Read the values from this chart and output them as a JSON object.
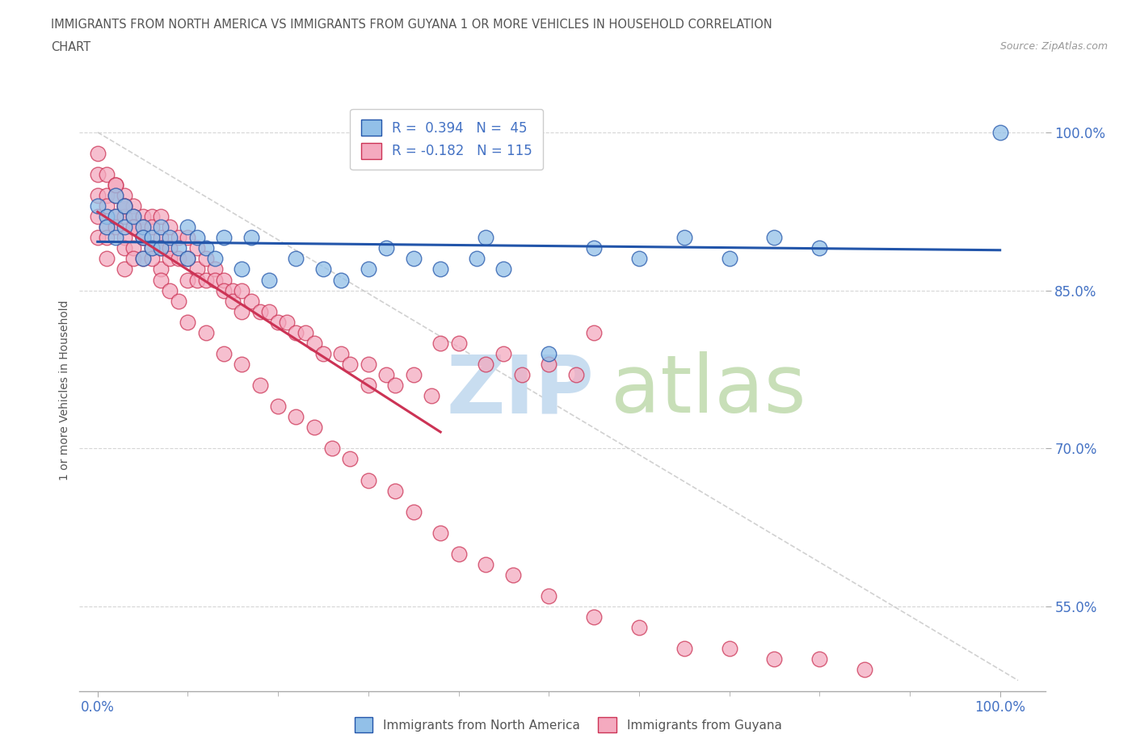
{
  "title_line1": "IMMIGRANTS FROM NORTH AMERICA VS IMMIGRANTS FROM GUYANA 1 OR MORE VEHICLES IN HOUSEHOLD CORRELATION",
  "title_line2": "CHART",
  "source_text": "Source: ZipAtlas.com",
  "ylabel": "1 or more Vehicles in Household",
  "ytick_labels": [
    "55.0%",
    "70.0%",
    "85.0%",
    "100.0%"
  ],
  "ytick_values": [
    0.55,
    0.7,
    0.85,
    1.0
  ],
  "xtick_labels": [
    "0.0%",
    "100.0%"
  ],
  "xtick_values": [
    0.0,
    1.0
  ],
  "xlim": [
    -0.02,
    1.05
  ],
  "ylim": [
    0.47,
    1.04
  ],
  "color_blue": "#92C0E8",
  "color_pink": "#F4AABF",
  "line_color_blue": "#2255AA",
  "line_color_pink": "#CC3355",
  "dash_line_color": "#CCCCCC",
  "background_color": "#ffffff",
  "grid_color": "#CCCCCC",
  "title_color": "#555555",
  "axis_label_color": "#4472c4",
  "watermark_zip_color": "#C8DDF0",
  "watermark_atlas_color": "#C8DFB8",
  "blue_points_x": [
    0.0,
    0.01,
    0.01,
    0.02,
    0.02,
    0.02,
    0.03,
    0.03,
    0.04,
    0.05,
    0.05,
    0.05,
    0.06,
    0.06,
    0.07,
    0.07,
    0.08,
    0.09,
    0.1,
    0.1,
    0.11,
    0.12,
    0.13,
    0.14,
    0.16,
    0.17,
    0.19,
    0.22,
    0.25,
    0.27,
    0.3,
    0.32,
    0.35,
    0.38,
    0.42,
    0.43,
    0.45,
    0.5,
    0.55,
    0.6,
    0.65,
    0.7,
    0.75,
    0.8,
    1.0
  ],
  "blue_points_y": [
    0.93,
    0.92,
    0.91,
    0.94,
    0.92,
    0.9,
    0.93,
    0.91,
    0.92,
    0.91,
    0.9,
    0.88,
    0.9,
    0.89,
    0.91,
    0.89,
    0.9,
    0.89,
    0.91,
    0.88,
    0.9,
    0.89,
    0.88,
    0.9,
    0.87,
    0.9,
    0.86,
    0.88,
    0.87,
    0.86,
    0.87,
    0.89,
    0.88,
    0.87,
    0.88,
    0.9,
    0.87,
    0.79,
    0.89,
    0.88,
    0.9,
    0.88,
    0.9,
    0.89,
    1.0
  ],
  "pink_points_x": [
    0.0,
    0.0,
    0.0,
    0.0,
    0.0,
    0.01,
    0.01,
    0.01,
    0.01,
    0.01,
    0.01,
    0.02,
    0.02,
    0.02,
    0.02,
    0.03,
    0.03,
    0.03,
    0.03,
    0.03,
    0.03,
    0.04,
    0.04,
    0.04,
    0.04,
    0.04,
    0.05,
    0.05,
    0.05,
    0.05,
    0.06,
    0.06,
    0.06,
    0.07,
    0.07,
    0.07,
    0.07,
    0.08,
    0.08,
    0.08,
    0.09,
    0.09,
    0.1,
    0.1,
    0.1,
    0.11,
    0.11,
    0.11,
    0.12,
    0.12,
    0.13,
    0.13,
    0.14,
    0.14,
    0.15,
    0.15,
    0.16,
    0.16,
    0.17,
    0.18,
    0.19,
    0.2,
    0.21,
    0.22,
    0.23,
    0.24,
    0.25,
    0.27,
    0.28,
    0.3,
    0.3,
    0.32,
    0.33,
    0.35,
    0.37,
    0.38,
    0.4,
    0.43,
    0.45,
    0.47,
    0.5,
    0.53,
    0.55,
    0.02,
    0.03,
    0.04,
    0.05,
    0.06,
    0.07,
    0.08,
    0.09,
    0.1,
    0.12,
    0.14,
    0.16,
    0.18,
    0.2,
    0.22,
    0.24,
    0.26,
    0.28,
    0.3,
    0.33,
    0.35,
    0.38,
    0.4,
    0.43,
    0.46,
    0.5,
    0.55,
    0.6,
    0.65,
    0.7,
    0.75,
    0.8,
    0.85
  ],
  "pink_points_y": [
    0.98,
    0.96,
    0.94,
    0.92,
    0.9,
    0.96,
    0.94,
    0.93,
    0.91,
    0.9,
    0.88,
    0.95,
    0.94,
    0.92,
    0.91,
    0.94,
    0.93,
    0.92,
    0.9,
    0.89,
    0.87,
    0.93,
    0.92,
    0.91,
    0.89,
    0.88,
    0.92,
    0.91,
    0.9,
    0.88,
    0.92,
    0.91,
    0.89,
    0.92,
    0.9,
    0.89,
    0.87,
    0.91,
    0.89,
    0.88,
    0.9,
    0.88,
    0.9,
    0.88,
    0.86,
    0.89,
    0.87,
    0.86,
    0.88,
    0.86,
    0.87,
    0.86,
    0.86,
    0.85,
    0.85,
    0.84,
    0.85,
    0.83,
    0.84,
    0.83,
    0.83,
    0.82,
    0.82,
    0.81,
    0.81,
    0.8,
    0.79,
    0.79,
    0.78,
    0.78,
    0.76,
    0.77,
    0.76,
    0.77,
    0.75,
    0.8,
    0.8,
    0.78,
    0.79,
    0.77,
    0.78,
    0.77,
    0.81,
    0.95,
    0.93,
    0.91,
    0.9,
    0.88,
    0.86,
    0.85,
    0.84,
    0.82,
    0.81,
    0.79,
    0.78,
    0.76,
    0.74,
    0.73,
    0.72,
    0.7,
    0.69,
    0.67,
    0.66,
    0.64,
    0.62,
    0.6,
    0.59,
    0.58,
    0.56,
    0.54,
    0.53,
    0.51,
    0.51,
    0.5,
    0.5,
    0.49
  ]
}
